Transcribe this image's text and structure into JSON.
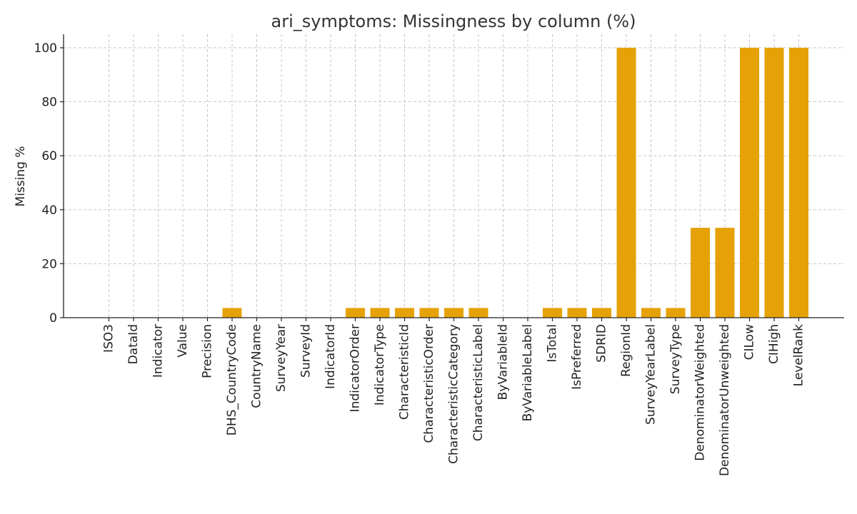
{
  "chart_data": {
    "type": "bar",
    "title": "ari_symptoms: Missingness by column (%)",
    "xlabel": "",
    "ylabel": "Missing %",
    "ylim": [
      0,
      105
    ],
    "yticks": [
      0,
      20,
      40,
      60,
      80,
      100
    ],
    "grid": true,
    "bar_color": "#E6A106",
    "categories": [
      "ISO3",
      "DataId",
      "Indicator",
      "Value",
      "Precision",
      "DHS_CountryCode",
      "CountryName",
      "SurveyYear",
      "SurveyId",
      "IndicatorId",
      "IndicatorOrder",
      "IndicatorType",
      "CharacteristicId",
      "CharacteristicOrder",
      "CharacteristicCategory",
      "CharacteristicLabel",
      "ByVariableId",
      "ByVariableLabel",
      "IsTotal",
      "IsPreferred",
      "SDRID",
      "RegionId",
      "SurveyYearLabel",
      "SurveyType",
      "DenominatorWeighted",
      "DenominatorUnweighted",
      "CILow",
      "CIHigh",
      "LevelRank"
    ],
    "values": [
      0,
      0,
      0,
      0,
      0,
      3.6,
      0,
      0,
      0,
      0,
      3.6,
      3.6,
      3.6,
      3.6,
      3.6,
      3.6,
      0,
      0,
      3.6,
      3.6,
      3.6,
      100,
      3.6,
      3.6,
      33.3,
      33.3,
      100,
      100,
      100
    ]
  }
}
